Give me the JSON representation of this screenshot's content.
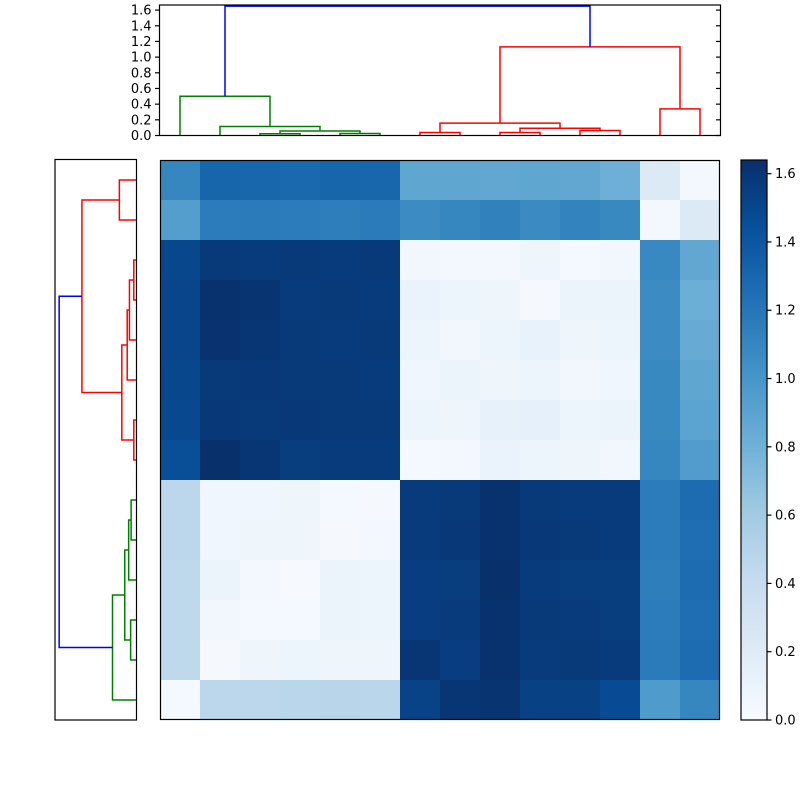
{
  "chart_data": {
    "type": "heatmap",
    "title": "",
    "xlabel": "",
    "ylabel": "",
    "colormap": "Blues",
    "vmin": 0.0,
    "vmax": 1.64,
    "grid": false,
    "rows": 14,
    "cols": 14,
    "matrix": [
      [
        1.1,
        1.31,
        1.3,
        1.29,
        1.31,
        1.3,
        0.88,
        0.88,
        0.87,
        0.88,
        0.87,
        0.81,
        0.22,
        0.04
      ],
      [
        0.94,
        1.16,
        1.17,
        1.16,
        1.15,
        1.17,
        1.06,
        1.1,
        1.13,
        1.07,
        1.12,
        1.08,
        0.04,
        0.22
      ],
      [
        1.5,
        1.58,
        1.57,
        1.58,
        1.57,
        1.58,
        0.05,
        0.04,
        0.04,
        0.07,
        0.03,
        0.05,
        1.09,
        0.87
      ],
      [
        1.51,
        1.63,
        1.61,
        1.57,
        1.58,
        1.57,
        0.11,
        0.08,
        0.07,
        0.02,
        0.09,
        0.1,
        1.06,
        0.82
      ],
      [
        1.51,
        1.62,
        1.6,
        1.58,
        1.57,
        1.58,
        0.08,
        0.05,
        0.08,
        0.12,
        0.07,
        0.08,
        1.06,
        0.84
      ],
      [
        1.5,
        1.58,
        1.59,
        1.58,
        1.58,
        1.57,
        0.06,
        0.1,
        0.07,
        0.08,
        0.05,
        0.06,
        1.08,
        0.88
      ],
      [
        1.49,
        1.59,
        1.58,
        1.59,
        1.58,
        1.58,
        0.08,
        0.07,
        0.13,
        0.14,
        0.08,
        0.1,
        1.08,
        0.9
      ],
      [
        1.45,
        1.64,
        1.6,
        1.56,
        1.57,
        1.57,
        0.03,
        0.04,
        0.11,
        0.08,
        0.07,
        0.05,
        1.1,
        0.95
      ],
      [
        0.46,
        0.06,
        0.06,
        0.07,
        0.03,
        0.02,
        1.57,
        1.58,
        1.63,
        1.58,
        1.57,
        1.57,
        1.16,
        1.26
      ],
      [
        0.46,
        0.06,
        0.07,
        0.07,
        0.02,
        0.04,
        1.57,
        1.59,
        1.63,
        1.59,
        1.58,
        1.57,
        1.16,
        1.25
      ],
      [
        0.45,
        0.1,
        0.04,
        0.01,
        0.09,
        0.08,
        1.55,
        1.56,
        1.64,
        1.57,
        1.56,
        1.56,
        1.15,
        1.26
      ],
      [
        0.45,
        0.05,
        0.03,
        0.03,
        0.09,
        0.08,
        1.55,
        1.57,
        1.63,
        1.58,
        1.57,
        1.56,
        1.16,
        1.25
      ],
      [
        0.45,
        0.02,
        0.07,
        0.08,
        0.07,
        0.07,
        1.6,
        1.55,
        1.63,
        1.57,
        1.58,
        1.57,
        1.17,
        1.26
      ],
      [
        0.03,
        0.46,
        0.46,
        0.47,
        0.48,
        0.47,
        1.52,
        1.6,
        1.61,
        1.53,
        1.53,
        1.47,
        0.96,
        1.1
      ]
    ],
    "blues_anchors": [
      [
        0.0,
        "#f7fbff"
      ],
      [
        0.125,
        "#deebf7"
      ],
      [
        0.25,
        "#c6dbef"
      ],
      [
        0.375,
        "#9ecae1"
      ],
      [
        0.5,
        "#6baed6"
      ],
      [
        0.625,
        "#4292c6"
      ],
      [
        0.75,
        "#2171b5"
      ],
      [
        0.875,
        "#08519c"
      ],
      [
        1.0,
        "#08306b"
      ]
    ],
    "palette": {
      "green": "#008000",
      "red": "#ff0000",
      "blue": "#0000ff"
    },
    "top_dendrogram": {
      "orientation": "top",
      "axis_max": 1.665,
      "axis_tick_labels": [
        "0.0",
        "0.2",
        "0.4",
        "0.6",
        "0.8",
        "1.0",
        "1.2",
        "1.4",
        "1.6"
      ],
      "axis_tick_values": [
        0.0,
        0.2,
        0.4,
        0.6,
        0.8,
        1.0,
        1.2,
        1.4,
        1.6
      ],
      "leaf_count": 14,
      "links": [
        {
          "id": "n0",
          "children": [
            2,
            3
          ],
          "h": 0.022,
          "color": "green"
        },
        {
          "id": "n1",
          "children": [
            4,
            5
          ],
          "h": 0.026,
          "color": "green"
        },
        {
          "id": "n2",
          "children": [
            "n0",
            "n1"
          ],
          "h": 0.057,
          "color": "green"
        },
        {
          "id": "n3",
          "children": [
            1,
            "n2"
          ],
          "h": 0.115,
          "color": "green"
        },
        {
          "id": "n4",
          "children": [
            0,
            "n3"
          ],
          "h": 0.5,
          "color": "green"
        },
        {
          "id": "n5",
          "children": [
            6,
            7
          ],
          "h": 0.038,
          "color": "red"
        },
        {
          "id": "n6",
          "children": [
            8,
            9
          ],
          "h": 0.038,
          "color": "red"
        },
        {
          "id": "n7",
          "children": [
            10,
            11
          ],
          "h": 0.064,
          "color": "red"
        },
        {
          "id": "n8",
          "children": [
            "n6",
            "n7"
          ],
          "h": 0.093,
          "color": "red"
        },
        {
          "id": "n9",
          "children": [
            "n5",
            "n8"
          ],
          "h": 0.158,
          "color": "red"
        },
        {
          "id": "n10",
          "children": [
            12,
            13
          ],
          "h": 0.34,
          "color": "red"
        },
        {
          "id": "n11",
          "children": [
            "n9",
            "n10"
          ],
          "h": 1.13,
          "color": "red"
        },
        {
          "id": "n12",
          "children": [
            "n4",
            "n11"
          ],
          "h": 1.65,
          "color": "blue"
        }
      ]
    },
    "left_dendrogram": {
      "orientation": "left",
      "axis_max": 1.665,
      "leaf_count": 14,
      "links": [
        {
          "id": "m0",
          "children": [
            0,
            1
          ],
          "h": 0.35,
          "color": "red"
        },
        {
          "id": "m1",
          "children": [
            2,
            3
          ],
          "h": 0.055,
          "color": "red"
        },
        {
          "id": "m2",
          "children": [
            "m1",
            4
          ],
          "h": 0.144,
          "color": "red"
        },
        {
          "id": "m3",
          "children": [
            "m2",
            5
          ],
          "h": 0.19,
          "color": "red"
        },
        {
          "id": "m4",
          "children": [
            6,
            7
          ],
          "h": 0.055,
          "color": "red"
        },
        {
          "id": "m5",
          "children": [
            "m3",
            "m4"
          ],
          "h": 0.3,
          "color": "red"
        },
        {
          "id": "m6",
          "children": [
            "m0",
            "m5"
          ],
          "h": 1.115,
          "color": "red"
        },
        {
          "id": "m7",
          "children": [
            8,
            9
          ],
          "h": 0.11,
          "color": "green"
        },
        {
          "id": "m8",
          "children": [
            "m7",
            10
          ],
          "h": 0.16,
          "color": "green"
        },
        {
          "id": "m9",
          "children": [
            11,
            12
          ],
          "h": 0.12,
          "color": "green"
        },
        {
          "id": "m10",
          "children": [
            "m8",
            "m9"
          ],
          "h": 0.24,
          "color": "green"
        },
        {
          "id": "m11",
          "children": [
            "m10",
            13
          ],
          "h": 0.49,
          "color": "green"
        },
        {
          "id": "m12",
          "children": [
            "m6",
            "m11"
          ],
          "h": 1.58,
          "color": "blue"
        }
      ]
    },
    "colorbar": {
      "position": "right",
      "min": 0.0,
      "max": 1.64,
      "tick_labels": [
        "0.0",
        "0.2",
        "0.4",
        "0.6",
        "0.8",
        "1.0",
        "1.2",
        "1.4",
        "1.6"
      ],
      "tick_values": [
        0.0,
        0.2,
        0.4,
        0.6,
        0.8,
        1.0,
        1.2,
        1.4,
        1.6
      ]
    }
  }
}
